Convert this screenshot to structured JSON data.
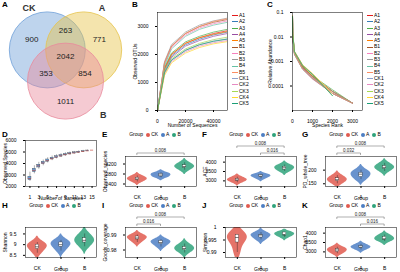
{
  "chart_data": [
    {
      "type": "venn",
      "panel_label": "A",
      "sets": [
        {
          "name": "CK",
          "color": "#6f9fd8"
        },
        {
          "name": "A",
          "color": "#e6c34a"
        },
        {
          "name": "B",
          "color": "#e88a9c"
        }
      ],
      "regions": [
        {
          "sets": [
            "CK"
          ],
          "value": 900
        },
        {
          "sets": [
            "A"
          ],
          "value": 771
        },
        {
          "sets": [
            "B"
          ],
          "value": 1011
        },
        {
          "sets": [
            "CK",
            "A"
          ],
          "value": 263
        },
        {
          "sets": [
            "CK",
            "B"
          ],
          "value": 353
        },
        {
          "sets": [
            "A",
            "B"
          ],
          "value": 854
        },
        {
          "sets": [
            "CK",
            "A",
            "B"
          ],
          "value": 2042
        }
      ]
    },
    {
      "type": "line",
      "panel_label": "B",
      "x_label": "Number of Sequences",
      "y_label": "Observed OTUs",
      "x": [
        0,
        5000,
        10000,
        20000,
        30000,
        40000,
        50000
      ],
      "xlim": [
        0,
        50000
      ],
      "xticks": [
        0,
        20000,
        40000
      ],
      "ylim": [
        0,
        3500
      ],
      "yticks": [
        0,
        1000,
        2000,
        3000
      ],
      "series": [
        {
          "name": "A1",
          "color": "#e41a1c",
          "values": [
            0,
            1500,
            2000,
            2400,
            2600,
            2750,
            2850
          ]
        },
        {
          "name": "A2",
          "color": "#377eb8",
          "values": [
            0,
            1450,
            1950,
            2350,
            2550,
            2700,
            2800
          ]
        },
        {
          "name": "A3",
          "color": "#4daf4a",
          "values": [
            0,
            1550,
            2050,
            2450,
            2650,
            2800,
            2900
          ]
        },
        {
          "name": "A4",
          "color": "#984ea3",
          "values": [
            0,
            1400,
            1900,
            2300,
            2500,
            2650,
            2750
          ]
        },
        {
          "name": "A5",
          "color": "#ff7f00",
          "values": [
            0,
            1500,
            2000,
            2400,
            2600,
            2720,
            2820
          ]
        },
        {
          "name": "B1",
          "color": "#a65628",
          "values": [
            0,
            1700,
            2300,
            2750,
            3000,
            3150,
            3250
          ]
        },
        {
          "name": "B2",
          "color": "#f781bf",
          "values": [
            0,
            1650,
            2250,
            2700,
            2950,
            3100,
            3200
          ]
        },
        {
          "name": "B3",
          "color": "#999999",
          "values": [
            0,
            1750,
            2350,
            2800,
            3050,
            3200,
            3300
          ]
        },
        {
          "name": "B4",
          "color": "#66c2a5",
          "values": [
            0,
            1600,
            2200,
            2650,
            2900,
            3050,
            3150
          ]
        },
        {
          "name": "B5",
          "color": "#fc8d62",
          "values": [
            0,
            1700,
            2300,
            2750,
            3000,
            3180,
            3280
          ]
        },
        {
          "name": "CK1",
          "color": "#8da0cb",
          "values": [
            0,
            1350,
            1800,
            2150,
            2350,
            2480,
            2560
          ]
        },
        {
          "name": "CK2",
          "color": "#e78ac3",
          "values": [
            0,
            1300,
            1750,
            2100,
            2300,
            2420,
            2500
          ]
        },
        {
          "name": "CK3",
          "color": "#a6d854",
          "values": [
            0,
            1400,
            1850,
            2200,
            2400,
            2530,
            2620
          ]
        },
        {
          "name": "CK4",
          "color": "#ffd92f",
          "values": [
            0,
            1250,
            1700,
            2050,
            2250,
            2380,
            2460
          ]
        },
        {
          "name": "CK5",
          "color": "#1b9e77",
          "values": [
            0,
            1350,
            1800,
            2150,
            2350,
            2470,
            2550
          ]
        }
      ]
    },
    {
      "type": "line",
      "panel_label": "C",
      "x_label": "Species Rank",
      "y_label": "Relative Abundance",
      "log": "y",
      "x": [
        1,
        10,
        100,
        500,
        1000,
        2000,
        3000
      ],
      "xlim": [
        0,
        3500
      ],
      "xticks": [
        0,
        1000,
        2000,
        3000
      ],
      "ylim": [
        1e-05,
        0.1
      ],
      "yticks": [
        0.0001,
        0.001,
        0.01,
        0.1
      ],
      "series": [
        {
          "name": "A1",
          "color": "#e41a1c",
          "values": [
            0.06,
            0.012,
            0.0022,
            0.0006,
            0.00025,
            6e-05,
            2e-05
          ]
        },
        {
          "name": "A2",
          "color": "#377eb8",
          "values": [
            0.055,
            0.011,
            0.0021,
            0.00058,
            0.00024,
            6e-05,
            2e-05
          ]
        },
        {
          "name": "A3",
          "color": "#4daf4a",
          "values": [
            0.065,
            0.013,
            0.0023,
            0.00062,
            0.00026,
            7e-05,
            2e-05
          ]
        },
        {
          "name": "A4",
          "color": "#984ea3",
          "values": [
            0.058,
            0.012,
            0.0021,
            0.00057,
            0.00023,
            5e-05,
            2e-05
          ]
        },
        {
          "name": "A5",
          "color": "#ff7f00",
          "values": [
            0.062,
            0.012,
            0.0022,
            0.00061,
            0.00025,
            6e-05,
            2e-05
          ]
        },
        {
          "name": "B1",
          "color": "#a65628",
          "values": [
            0.05,
            0.01,
            0.002,
            0.0005,
            0.0002,
            5e-05,
            2e-05
          ]
        },
        {
          "name": "B2",
          "color": "#f781bf",
          "values": [
            0.048,
            0.0095,
            0.0019,
            0.00048,
            0.00019,
            5e-05,
            2e-05
          ]
        },
        {
          "name": "B3",
          "color": "#999999",
          "values": [
            0.052,
            0.0105,
            0.0021,
            0.00052,
            0.00021,
            6e-05,
            2e-05
          ]
        },
        {
          "name": "B4",
          "color": "#66c2a5",
          "values": [
            0.047,
            0.0098,
            0.0019,
            0.00049,
            0.0002,
            5e-05,
            2e-05
          ]
        },
        {
          "name": "B5",
          "color": "#fc8d62",
          "values": [
            0.051,
            0.01,
            0.002,
            0.00051,
            0.00021,
            5e-05,
            2e-05
          ]
        },
        {
          "name": "CK1",
          "color": "#8da0cb",
          "values": [
            0.07,
            0.014,
            0.0025,
            0.0007,
            0.0003,
            5e-05,
            null
          ]
        },
        {
          "name": "CK2",
          "color": "#e78ac3",
          "values": [
            0.072,
            0.015,
            0.0026,
            0.00072,
            0.00031,
            5e-05,
            null
          ]
        },
        {
          "name": "CK3",
          "color": "#a6d854",
          "values": [
            0.068,
            0.014,
            0.0024,
            0.00068,
            0.00029,
            4e-05,
            null
          ]
        },
        {
          "name": "CK4",
          "color": "#ffd92f",
          "values": [
            0.075,
            0.015,
            0.0026,
            0.00074,
            0.00032,
            5e-05,
            null
          ]
        },
        {
          "name": "CK5",
          "color": "#1b9e77",
          "values": [
            0.069,
            0.014,
            0.0025,
            0.00069,
            0.0003,
            4e-05,
            null
          ]
        }
      ]
    },
    {
      "type": "box",
      "panel_label": "D",
      "x_label": "Number of Samples",
      "y_label": "Observed Species",
      "color": "#6a9fd8",
      "x": [
        1,
        2,
        3,
        4,
        5,
        6,
        7,
        8,
        9,
        10,
        11,
        12,
        13,
        14,
        15
      ],
      "xlim": [
        0,
        16
      ],
      "xticks": [
        1,
        3,
        5,
        7,
        9,
        11,
        13,
        15
      ],
      "ylim": [
        2000,
        6000
      ],
      "yticks": [
        2000,
        3000,
        4000,
        5000,
        6000
      ],
      "boxes": [
        {
          "min": 2450,
          "q1": 2550,
          "median": 2700,
          "q3": 2850,
          "max": 3250
        },
        {
          "min": 3100,
          "q1": 3250,
          "median": 3400,
          "q3": 3550,
          "max": 3800
        },
        {
          "min": 3500,
          "q1": 3650,
          "median": 3800,
          "q3": 3900,
          "max": 4100
        },
        {
          "min": 3800,
          "q1": 3950,
          "median": 4050,
          "q3": 4150,
          "max": 4300
        },
        {
          "min": 4050,
          "q1": 4150,
          "median": 4250,
          "q3": 4350,
          "max": 4500
        },
        {
          "min": 4250,
          "q1": 4350,
          "median": 4420,
          "q3": 4500,
          "max": 4650
        },
        {
          "min": 4400,
          "q1": 4480,
          "median": 4560,
          "q3": 4640,
          "max": 4760
        },
        {
          "min": 4520,
          "q1": 4600,
          "median": 4670,
          "q3": 4740,
          "max": 4850
        },
        {
          "min": 4630,
          "q1": 4700,
          "median": 4770,
          "q3": 4830,
          "max": 4930
        },
        {
          "min": 4730,
          "q1": 4790,
          "median": 4850,
          "q3": 4910,
          "max": 5000
        },
        {
          "min": 4820,
          "q1": 4870,
          "median": 4920,
          "q3": 4970,
          "max": 5050
        },
        {
          "min": 4900,
          "q1": 4940,
          "median": 4990,
          "q3": 5030,
          "max": 5100
        },
        {
          "min": 4970,
          "q1": 5010,
          "median": 5050,
          "q3": 5080,
          "max": 5140
        },
        {
          "min": 5040,
          "q1": 5070,
          "median": 5100,
          "q3": 5130,
          "max": 5170
        },
        {
          "min": 5160,
          "q1": 5160,
          "median": 5160,
          "q3": 5160,
          "max": 5160
        }
      ]
    },
    {
      "type": "violin",
      "panel_label": "E",
      "x_label": "Group",
      "y_label": "Observed_species",
      "legend_title": "Group",
      "ylim": [
        2300,
        3500
      ],
      "yticks": [
        2400,
        2800,
        3200
      ],
      "groups": [
        {
          "name": "CK",
          "color": "#e05a4f",
          "values": [
            2480,
            2560,
            2600,
            2650,
            2720
          ]
        },
        {
          "name": "A",
          "color": "#4d7fc4",
          "values": [
            2650,
            2700,
            2760,
            2800,
            2850
          ]
        },
        {
          "name": "B",
          "color": "#2fa37b",
          "values": [
            2950,
            3050,
            3100,
            3150,
            3250
          ]
        }
      ],
      "comparisons": [
        {
          "groups": [
            "CK",
            "B"
          ],
          "p": 0.008
        }
      ]
    },
    {
      "type": "violin",
      "panel_label": "F",
      "x_label": "Group",
      "y_label": "ACE",
      "legend_title": "Group",
      "ylim": [
        2700,
        4300
      ],
      "yticks": [
        3000,
        3500,
        4000
      ],
      "groups": [
        {
          "name": "CK",
          "color": "#e05a4f",
          "values": [
            2900,
            3000,
            3050,
            3100,
            3200
          ]
        },
        {
          "name": "A",
          "color": "#4d7fc4",
          "values": [
            3100,
            3200,
            3250,
            3300,
            3350
          ]
        },
        {
          "name": "B",
          "color": "#2fa37b",
          "values": [
            3500,
            3600,
            3700,
            3750,
            3850
          ]
        }
      ],
      "comparisons": [
        {
          "groups": [
            "A",
            "B"
          ],
          "p": 0.016
        },
        {
          "groups": [
            "CK",
            "B"
          ],
          "p": 0.008
        }
      ]
    },
    {
      "type": "violin",
      "panel_label": "G",
      "x_label": "Group",
      "y_label": "PD_whole_tree",
      "legend_title": "Group",
      "ylim": [
        140,
        250
      ],
      "yticks": [
        150,
        200
      ],
      "groups": [
        {
          "name": "CK",
          "color": "#e05a4f",
          "values": [
            150,
            160,
            165,
            170,
            180
          ]
        },
        {
          "name": "A",
          "color": "#4d7fc4",
          "values": [
            165,
            175,
            185,
            190,
            200
          ]
        },
        {
          "name": "B",
          "color": "#2fa37b",
          "values": [
            195,
            205,
            210,
            215,
            225
          ]
        }
      ],
      "comparisons": [
        {
          "groups": [
            "CK",
            "A"
          ],
          "p": 0.032
        },
        {
          "groups": [
            "CK",
            "B"
          ],
          "p": 0.008
        }
      ]
    },
    {
      "type": "violin",
      "panel_label": "H",
      "x_label": "Group",
      "y_label": "Shannon",
      "legend_title": "Group",
      "ylim": [
        8.4,
        9.8
      ],
      "yticks": [
        8.5,
        9,
        9.5
      ],
      "groups": [
        {
          "name": "CK",
          "color": "#e05a4f",
          "values": [
            8.6,
            8.8,
            8.9,
            9.0,
            9.1
          ]
        },
        {
          "name": "A",
          "color": "#4d7fc4",
          "values": [
            8.7,
            8.9,
            9.0,
            9.1,
            9.2
          ]
        },
        {
          "name": "B",
          "color": "#2fa37b",
          "values": [
            8.9,
            9.1,
            9.2,
            9.3,
            9.5
          ]
        }
      ],
      "comparisons": []
    },
    {
      "type": "violin",
      "panel_label": "I",
      "x_label": "Group",
      "y_label": "Goods_coverage",
      "legend_title": "Group",
      "ylim": [
        0.975,
        0.995
      ],
      "yticks": [
        0.98,
        0.99
      ],
      "groups": [
        {
          "name": "CK",
          "color": "#e05a4f",
          "values": [
            0.985,
            0.987,
            0.988,
            0.989,
            0.99
          ]
        },
        {
          "name": "A",
          "color": "#4d7fc4",
          "values": [
            0.982,
            0.984,
            0.985,
            0.986,
            0.987
          ]
        },
        {
          "name": "B",
          "color": "#2fa37b",
          "values": [
            0.978,
            0.98,
            0.981,
            0.982,
            0.984
          ]
        }
      ],
      "comparisons": [
        {
          "groups": [
            "CK",
            "A"
          ],
          "p": 0.016
        },
        {
          "groups": [
            "CK",
            "B"
          ],
          "p": 0.008
        }
      ]
    },
    {
      "type": "violin",
      "panel_label": "J",
      "x_label": "Group",
      "y_label": "Simpson",
      "legend_title": "Group",
      "ylim": [
        0.988,
        1.0
      ],
      "yticks": [
        0.99,
        0.995,
        1
      ],
      "groups": [
        {
          "name": "CK",
          "color": "#e05a4f",
          "values": [
            0.99,
            0.994,
            0.996,
            0.997,
            0.997
          ]
        },
        {
          "name": "A",
          "color": "#4d7fc4",
          "values": [
            0.995,
            0.996,
            0.997,
            0.997,
            0.998
          ]
        },
        {
          "name": "B",
          "color": "#2fa37b",
          "values": [
            0.996,
            0.997,
            0.997,
            0.998,
            0.998
          ]
        }
      ],
      "comparisons": []
    },
    {
      "type": "violin",
      "panel_label": "K",
      "x_label": "Group",
      "y_label": "Chao1",
      "legend_title": "Group",
      "ylim": [
        2700,
        4300
      ],
      "yticks": [
        3000,
        3500,
        4000
      ],
      "groups": [
        {
          "name": "CK",
          "color": "#e05a4f",
          "values": [
            2900,
            3000,
            3100,
            3150,
            3250
          ]
        },
        {
          "name": "A",
          "color": "#4d7fc4",
          "values": [
            3100,
            3200,
            3250,
            3300,
            3400
          ]
        },
        {
          "name": "B",
          "color": "#2fa37b",
          "values": [
            3550,
            3650,
            3700,
            3800,
            3900
          ]
        }
      ],
      "comparisons": [
        {
          "groups": [
            "A",
            "B"
          ],
          "p": 0.016
        },
        {
          "groups": [
            "CK",
            "B"
          ],
          "p": 0.008
        }
      ]
    }
  ]
}
